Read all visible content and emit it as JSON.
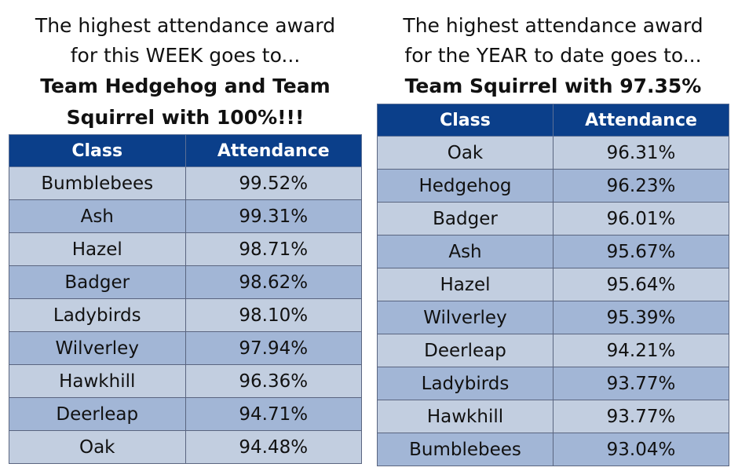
{
  "weekly": {
    "heading_line1": "The highest attendance award",
    "heading_line2": "for this WEEK goes to...",
    "winner_line1": "Team Hedgehog and Team",
    "winner_line2": "Squirrel with 100%!!!",
    "columns": [
      "Class",
      "Attendance"
    ],
    "rows": [
      {
        "class": "Bumblebees",
        "attendance": "99.52%"
      },
      {
        "class": "Ash",
        "attendance": "99.31%"
      },
      {
        "class": "Hazel",
        "attendance": "98.71%"
      },
      {
        "class": "Badger",
        "attendance": "98.62%"
      },
      {
        "class": "Ladybirds",
        "attendance": "98.10%"
      },
      {
        "class": "Wilverley",
        "attendance": "97.94%"
      },
      {
        "class": "Hawkhill",
        "attendance": "96.36%"
      },
      {
        "class": "Deerleap",
        "attendance": "94.71%"
      },
      {
        "class": "Oak",
        "attendance": "94.48%"
      }
    ]
  },
  "yearly": {
    "heading_line1": "The highest attendance award",
    "heading_line2": "for the YEAR to date goes to...",
    "winner_line1": "Team Squirrel with 97.35%",
    "columns": [
      "Class",
      "Attendance"
    ],
    "rows": [
      {
        "class": "Oak",
        "attendance": "96.31%"
      },
      {
        "class": "Hedgehog",
        "attendance": "96.23%"
      },
      {
        "class": "Badger",
        "attendance": "96.01%"
      },
      {
        "class": "Ash",
        "attendance": "95.67%"
      },
      {
        "class": "Hazel",
        "attendance": "95.64%"
      },
      {
        "class": "Wilverley",
        "attendance": "95.39%"
      },
      {
        "class": "Deerleap",
        "attendance": "94.21%"
      },
      {
        "class": "Ladybirds",
        "attendance": "93.77%"
      },
      {
        "class": "Hawkhill",
        "attendance": "93.77%"
      },
      {
        "class": "Bumblebees",
        "attendance": "93.04%"
      }
    ]
  },
  "colors": {
    "header_bg": "#0b3f8a",
    "row_light": "#c2cee0",
    "row_dark": "#a2b6d6"
  }
}
